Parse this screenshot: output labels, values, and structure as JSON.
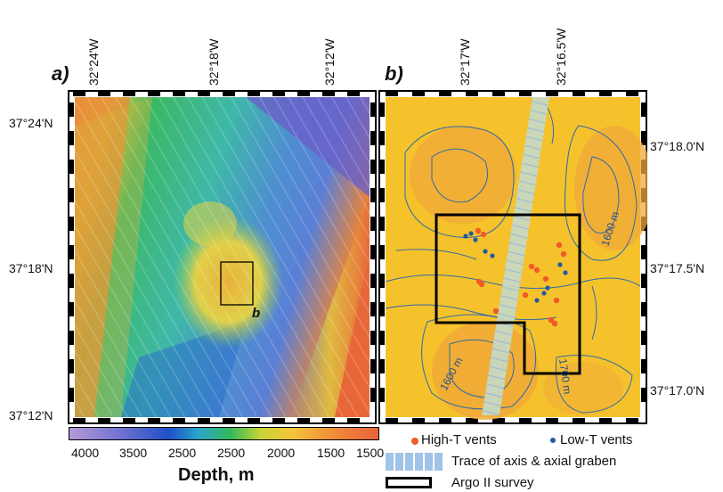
{
  "panel_a": {
    "letter": "a)",
    "top_ticks": [
      "32°24'W",
      "32°18'W",
      "32°12'W"
    ],
    "left_ticks": [
      "37°24'N",
      "37°18'N",
      "37°12'N"
    ],
    "inset_label": "b"
  },
  "panel_b": {
    "letter": "b)",
    "top_ticks": [
      "32°17'W",
      "32°16.5'W"
    ],
    "right_ticks": [
      "37°18.0'N",
      "37°17.5'N",
      "37°17.0'N"
    ],
    "contour_labels": [
      "1600 m",
      "1600 m",
      "1700 m"
    ]
  },
  "colorbar": {
    "ticks": [
      "4000",
      "3500",
      "2500",
      "2500",
      "2000",
      "1500",
      "1500"
    ],
    "title": "Depth, m",
    "colors": [
      "#b59ad6",
      "#6a6fd0",
      "#1e4fc8",
      "#2aa7c9",
      "#34b85a",
      "#c9d436",
      "#f2c53a",
      "#f08a3a",
      "#e8643a"
    ]
  },
  "legend": {
    "high_t": "High-T vents",
    "low_t": "Low-T vents",
    "axis_trace": "Trace of axis & axial graben",
    "argo": "Argo II survey",
    "high_t_color": "#f05a28",
    "low_t_color": "#1f5aa6"
  }
}
